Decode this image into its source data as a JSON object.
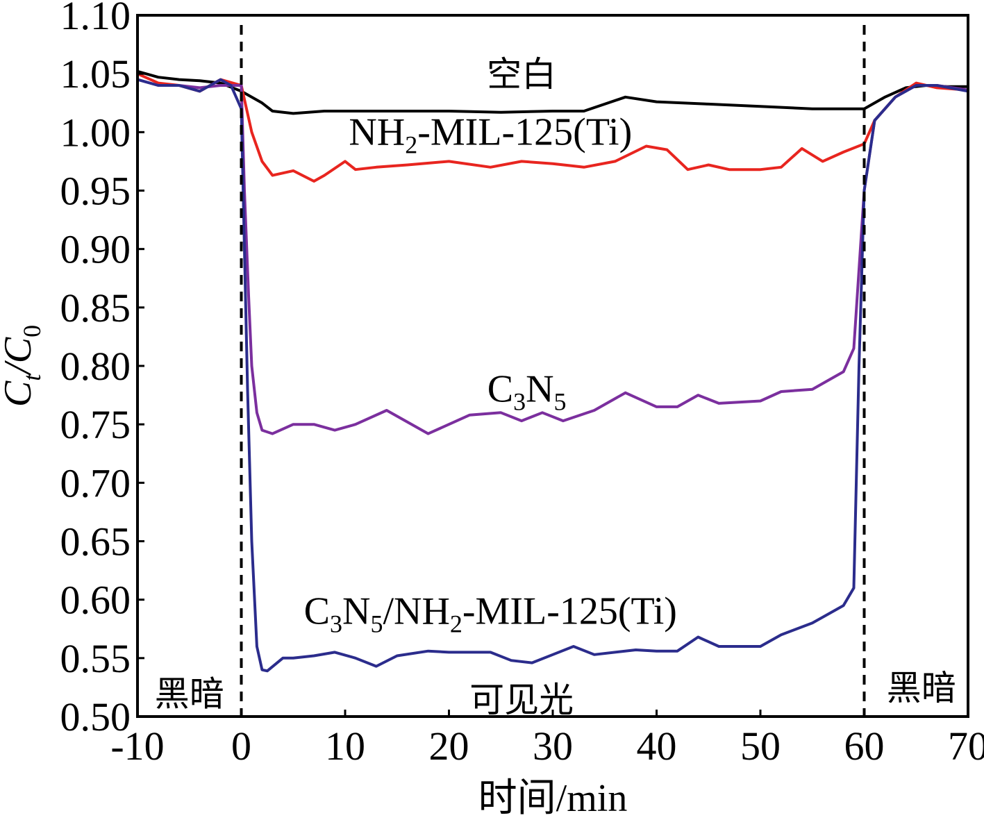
{
  "chart_data": {
    "type": "line",
    "xlabel": "时间/min",
    "ylabel_main": "C",
    "ylabel_sub1": "t",
    "ylabel_mid": "/C",
    "ylabel_sub2": "0",
    "xlim": [
      -10,
      70
    ],
    "ylim": [
      0.5,
      1.1
    ],
    "xticks": [
      "-10",
      "0",
      "10",
      "20",
      "30",
      "40",
      "50",
      "60",
      "70"
    ],
    "xtick_values": [
      -10,
      0,
      10,
      20,
      30,
      40,
      50,
      60,
      70
    ],
    "yticks": [
      "0.50",
      "0.55",
      "0.60",
      "0.65",
      "0.70",
      "0.75",
      "0.80",
      "0.85",
      "0.90",
      "0.95",
      "1.00",
      "1.05",
      "1.10"
    ],
    "ytick_values": [
      0.5,
      0.55,
      0.6,
      0.65,
      0.7,
      0.75,
      0.8,
      0.85,
      0.9,
      0.95,
      1.0,
      1.05,
      1.1
    ],
    "vlines": [
      0,
      60
    ],
    "region_labels": {
      "dark_left": "黑暗",
      "light": "可见光",
      "dark_right": "黑暗"
    },
    "series": [
      {
        "key": "blank",
        "color": "#000000",
        "label": "空白",
        "x": [
          -10,
          -8,
          -6,
          -4,
          -2,
          0,
          2,
          3,
          5,
          8,
          10,
          15,
          20,
          25,
          30,
          33,
          35,
          37,
          40,
          45,
          50,
          55,
          60,
          62,
          64,
          66,
          68,
          70
        ],
        "y": [
          1.052,
          1.047,
          1.045,
          1.044,
          1.042,
          1.035,
          1.025,
          1.018,
          1.016,
          1.018,
          1.018,
          1.018,
          1.018,
          1.017,
          1.018,
          1.018,
          1.024,
          1.03,
          1.026,
          1.024,
          1.022,
          1.02,
          1.02,
          1.03,
          1.038,
          1.04,
          1.039,
          1.039
        ]
      },
      {
        "key": "nh2",
        "color": "#e8251f",
        "label_main": "NH",
        "label_sub": "2",
        "label_rest": "-MIL-125(Ti)",
        "x": [
          -10,
          -8,
          -6,
          -4,
          -2,
          0,
          0.5,
          1,
          2,
          3,
          5,
          7,
          8,
          10,
          11,
          13,
          16,
          20,
          24,
          27,
          30,
          33,
          36,
          39,
          41,
          43,
          45,
          47,
          50,
          52,
          54,
          56,
          58,
          60,
          61,
          63,
          65,
          67,
          70
        ],
        "y": [
          1.05,
          1.042,
          1.04,
          1.035,
          1.045,
          1.04,
          1.02,
          1.0,
          0.975,
          0.963,
          0.967,
          0.958,
          0.963,
          0.975,
          0.968,
          0.97,
          0.972,
          0.975,
          0.97,
          0.975,
          0.973,
          0.97,
          0.975,
          0.988,
          0.985,
          0.968,
          0.972,
          0.968,
          0.968,
          0.97,
          0.986,
          0.975,
          0.983,
          0.99,
          1.01,
          1.03,
          1.042,
          1.038,
          1.036
        ]
      },
      {
        "key": "c3n5",
        "color": "#7b2f9e",
        "label_main": "C",
        "label_sub": "3",
        "label_rest": "N",
        "label_sub2": "5",
        "x": [
          -10,
          -8,
          -6,
          -4,
          -2,
          0,
          0.3,
          0.7,
          1,
          1.5,
          2,
          3,
          5,
          7,
          9,
          11,
          14,
          18,
          22,
          25,
          27,
          29,
          31,
          34,
          37,
          40,
          42,
          44,
          46,
          50,
          52,
          55,
          58,
          59,
          60,
          61,
          63,
          65,
          67,
          70
        ],
        "y": [
          1.045,
          1.04,
          1.04,
          1.038,
          1.04,
          1.04,
          0.95,
          0.86,
          0.8,
          0.76,
          0.745,
          0.742,
          0.75,
          0.75,
          0.745,
          0.75,
          0.762,
          0.742,
          0.758,
          0.76,
          0.753,
          0.76,
          0.753,
          0.762,
          0.777,
          0.765,
          0.765,
          0.775,
          0.768,
          0.77,
          0.778,
          0.78,
          0.795,
          0.815,
          0.95,
          1.01,
          1.03,
          1.04,
          1.04,
          1.036
        ]
      },
      {
        "key": "composite",
        "color": "#2b2c8c",
        "label_a": "C",
        "label_sub_a": "3",
        "label_b": "N",
        "label_sub_b": "5",
        "label_c": "/NH",
        "label_sub_c": "2",
        "label_d": "-MIL-125(Ti)",
        "x": [
          -10,
          -8,
          -6,
          -4,
          -2,
          -1,
          0,
          0.3,
          0.6,
          1,
          1.5,
          2,
          2.5,
          4,
          5,
          7,
          9,
          11,
          13,
          15,
          18,
          20,
          24,
          26,
          28,
          30,
          32,
          34,
          38,
          40,
          42,
          44,
          46,
          50,
          52,
          55,
          58,
          59,
          59.5,
          60,
          61,
          63,
          65,
          67,
          70
        ],
        "y": [
          1.045,
          1.04,
          1.04,
          1.035,
          1.045,
          1.04,
          1.02,
          0.9,
          0.78,
          0.65,
          0.56,
          0.54,
          0.539,
          0.55,
          0.55,
          0.552,
          0.555,
          0.55,
          0.543,
          0.552,
          0.556,
          0.555,
          0.555,
          0.548,
          0.546,
          0.553,
          0.56,
          0.553,
          0.557,
          0.556,
          0.556,
          0.568,
          0.56,
          0.56,
          0.57,
          0.58,
          0.595,
          0.61,
          0.8,
          0.95,
          1.01,
          1.03,
          1.04,
          1.04,
          1.035
        ]
      }
    ]
  }
}
